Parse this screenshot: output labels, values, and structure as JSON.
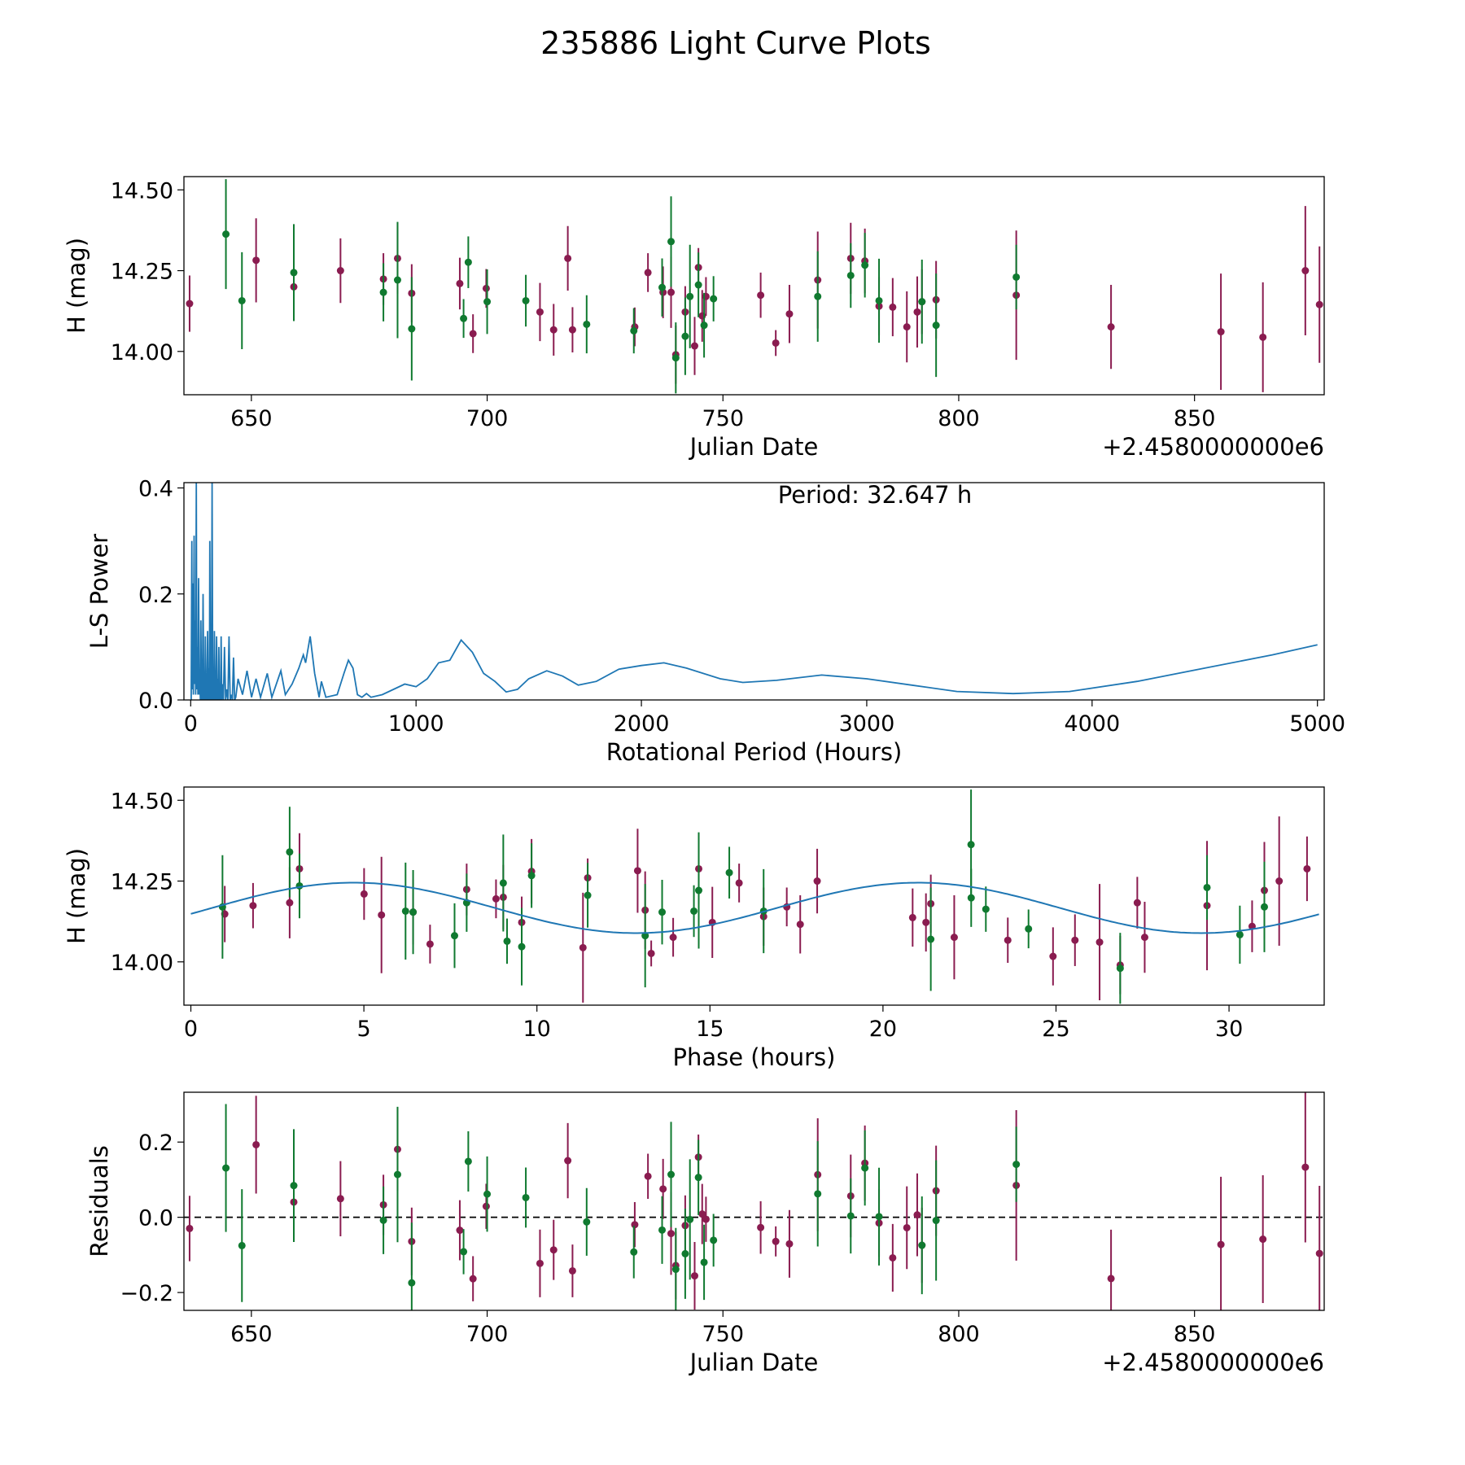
{
  "title": "235886 Light Curve Plots",
  "colors": {
    "band_a": "#8a1c50",
    "band_b": "#107a30",
    "periodogram": "#1f77b4",
    "model": "#1f77b4"
  },
  "offset_label": "+2.4580000000e6",
  "period_hours": 32.647,
  "model": {
    "mean": 14.167,
    "amplitude": 0.078,
    "peak_phase": 4.7,
    "epoch_jd": 636.88
  },
  "chart_data": [
    {
      "type": "scatter",
      "name": "light-curve",
      "xlabel": "Julian Date",
      "ylabel": "H (mag)",
      "xlim": [
        635.7,
        877.5
      ],
      "ylim": [
        13.866,
        14.541
      ],
      "xticks": [
        "650",
        "700",
        "750",
        "800",
        "850"
      ],
      "yticks": [
        "14.00",
        "14.25",
        "14.50"
      ],
      "series": [
        {
          "name": "band_a",
          "color": "#8a1c50",
          "points": [
            [
              636.9,
              14.148,
              0.087
            ],
            [
              651.0,
              14.282,
              0.13
            ],
            [
              659.0,
              14.2,
              0.1
            ],
            [
              668.9,
              14.25,
              0.1
            ],
            [
              678.0,
              14.224,
              0.08
            ],
            [
              681.0,
              14.288,
              0.11
            ],
            [
              684.0,
              14.18,
              0.09
            ],
            [
              694.2,
              14.21,
              0.08
            ],
            [
              697.0,
              14.055,
              0.06
            ],
            [
              699.8,
              14.195,
              0.06
            ],
            [
              711.2,
              14.122,
              0.09
            ],
            [
              714.1,
              14.067,
              0.08
            ],
            [
              717.1,
              14.288,
              0.1
            ],
            [
              718.1,
              14.067,
              0.07
            ],
            [
              731.3,
              14.076,
              0.06
            ],
            [
              734.1,
              14.244,
              0.06
            ],
            [
              737.3,
              14.183,
              0.08
            ],
            [
              739.0,
              14.183,
              0.11
            ],
            [
              740.0,
              13.99,
              0.09
            ],
            [
              742.0,
              14.122,
              0.08
            ],
            [
              744.0,
              14.017,
              0.09
            ],
            [
              744.8,
              14.26,
              0.06
            ],
            [
              745.6,
              14.11,
              0.08
            ],
            [
              746.4,
              14.17,
              0.06
            ],
            [
              758.0,
              14.174,
              0.07
            ],
            [
              761.2,
              14.026,
              0.04
            ],
            [
              764.1,
              14.116,
              0.09
            ],
            [
              770.1,
              14.221,
              0.15
            ],
            [
              777.1,
              14.288,
              0.11
            ],
            [
              780.1,
              14.28,
              0.1
            ],
            [
              783.1,
              14.14,
              0.09
            ],
            [
              786.0,
              14.137,
              0.09
            ],
            [
              789.0,
              14.076,
              0.11
            ],
            [
              791.2,
              14.122,
              0.11
            ],
            [
              792.2,
              14.154,
              0.1
            ],
            [
              795.2,
              14.16,
              0.12
            ],
            [
              812.2,
              14.174,
              0.2
            ],
            [
              832.3,
              14.076,
              0.13
            ],
            [
              855.6,
              14.061,
              0.18
            ],
            [
              864.5,
              14.044,
              0.17
            ],
            [
              873.5,
              14.25,
              0.2
            ],
            [
              876.5,
              14.145,
              0.18
            ]
          ]
        },
        {
          "name": "band_b",
          "color": "#107a30",
          "points": [
            [
              644.6,
              14.363,
              0.17
            ],
            [
              648.0,
              14.157,
              0.15
            ],
            [
              659.0,
              14.244,
              0.15
            ],
            [
              678.0,
              14.183,
              0.09
            ],
            [
              681.0,
              14.221,
              0.18
            ],
            [
              684.0,
              14.07,
              0.16
            ],
            [
              695.0,
              14.102,
              0.06
            ],
            [
              696.0,
              14.276,
              0.08
            ],
            [
              700.0,
              14.154,
              0.1
            ],
            [
              708.2,
              14.157,
              0.08
            ],
            [
              721.1,
              14.084,
              0.09
            ],
            [
              731.1,
              14.064,
              0.07
            ],
            [
              737.1,
              14.198,
              0.09
            ],
            [
              739.0,
              14.34,
              0.14
            ],
            [
              740.0,
              13.98,
              0.11
            ],
            [
              742.0,
              14.047,
              0.12
            ],
            [
              743.0,
              14.17,
              0.16
            ],
            [
              744.8,
              14.206,
              0.1
            ],
            [
              746.0,
              14.081,
              0.1
            ],
            [
              748.0,
              14.163,
              0.07
            ],
            [
              770.1,
              14.17,
              0.14
            ],
            [
              777.1,
              14.235,
              0.1
            ],
            [
              780.1,
              14.267,
              0.1
            ],
            [
              783.1,
              14.157,
              0.13
            ],
            [
              792.2,
              14.154,
              0.13
            ],
            [
              795.2,
              14.081,
              0.16
            ],
            [
              812.2,
              14.23,
              0.1
            ]
          ]
        }
      ]
    },
    {
      "type": "line",
      "name": "periodogram",
      "xlabel": "Rotational Period (Hours)",
      "ylabel": "L-S Power",
      "annotation": "Period: 32.647 h",
      "xlim": [
        -30,
        5030
      ],
      "ylim": [
        0,
        0.41
      ],
      "xticks": [
        "0",
        "1000",
        "2000",
        "3000",
        "4000",
        "5000"
      ],
      "yticks": [
        "0.0",
        "0.2",
        "0.4"
      ],
      "points": [
        [
          2,
          0
        ],
        [
          5,
          0.3
        ],
        [
          7,
          0.02
        ],
        [
          10,
          0.22
        ],
        [
          12,
          0.01
        ],
        [
          15,
          0.31
        ],
        [
          17,
          0.03
        ],
        [
          20,
          0.15
        ],
        [
          22,
          0.01
        ],
        [
          25,
          0.41
        ],
        [
          27,
          0.02
        ],
        [
          30,
          0.1
        ],
        [
          32,
          0.01
        ],
        [
          35,
          0.23
        ],
        [
          38,
          0.01
        ],
        [
          40,
          0.05
        ],
        [
          43,
          0.0
        ],
        [
          45,
          0.15
        ],
        [
          48,
          0.0
        ],
        [
          50,
          0.02
        ],
        [
          52,
          0.0
        ],
        [
          55,
          0.2
        ],
        [
          58,
          0.0
        ],
        [
          60,
          0.05
        ],
        [
          63,
          0.0
        ],
        [
          65,
          0.12
        ],
        [
          68,
          0.0
        ],
        [
          70,
          0.02
        ],
        [
          72,
          0.0
        ],
        [
          75,
          0.13
        ],
        [
          78,
          0.0
        ],
        [
          80,
          0.06
        ],
        [
          83,
          0.0
        ],
        [
          85,
          0.3
        ],
        [
          88,
          0.0
        ],
        [
          90,
          0.02
        ],
        [
          92,
          0.0
        ],
        [
          95,
          0.41
        ],
        [
          98,
          0.0
        ],
        [
          100,
          0.05
        ],
        [
          103,
          0.0
        ],
        [
          105,
          0.13
        ],
        [
          108,
          0.0
        ],
        [
          110,
          0.03
        ],
        [
          112,
          0.0
        ],
        [
          115,
          0.12
        ],
        [
          118,
          0.0
        ],
        [
          120,
          0.04
        ],
        [
          123,
          0.0
        ],
        [
          125,
          0.1
        ],
        [
          128,
          0.0
        ],
        [
          130,
          0.01
        ],
        [
          133,
          0.0
        ],
        [
          135,
          0.12
        ],
        [
          138,
          0.0
        ],
        [
          140,
          0.03
        ],
        [
          145,
          0.0
        ],
        [
          150,
          0.1
        ],
        [
          155,
          0.0
        ],
        [
          160,
          0.02
        ],
        [
          165,
          0.0
        ],
        [
          170,
          0.12
        ],
        [
          175,
          0.0
        ],
        [
          180,
          0.01
        ],
        [
          185,
          0.0
        ],
        [
          190,
          0.08
        ],
        [
          195,
          0.0
        ],
        [
          200,
          0.005
        ],
        [
          210,
          0.04
        ],
        [
          230,
          0.01
        ],
        [
          250,
          0.055
        ],
        [
          270,
          0.005
        ],
        [
          290,
          0.04
        ],
        [
          310,
          0.005
        ],
        [
          340,
          0.05
        ],
        [
          360,
          0.005
        ],
        [
          400,
          0.055
        ],
        [
          420,
          0.01
        ],
        [
          450,
          0.03
        ],
        [
          480,
          0.06
        ],
        [
          500,
          0.085
        ],
        [
          510,
          0.07
        ],
        [
          530,
          0.12
        ],
        [
          550,
          0.05
        ],
        [
          570,
          0.005
        ],
        [
          580,
          0.035
        ],
        [
          600,
          0.005
        ],
        [
          650,
          0.01
        ],
        [
          680,
          0.05
        ],
        [
          700,
          0.075
        ],
        [
          720,
          0.06
        ],
        [
          740,
          0.01
        ],
        [
          760,
          0.005
        ],
        [
          780,
          0.012
        ],
        [
          800,
          0.005
        ],
        [
          850,
          0.01
        ],
        [
          900,
          0.02
        ],
        [
          950,
          0.03
        ],
        [
          1000,
          0.025
        ],
        [
          1050,
          0.04
        ],
        [
          1100,
          0.07
        ],
        [
          1150,
          0.075
        ],
        [
          1200,
          0.113
        ],
        [
          1250,
          0.09
        ],
        [
          1300,
          0.05
        ],
        [
          1350,
          0.035
        ],
        [
          1400,
          0.015
        ],
        [
          1450,
          0.02
        ],
        [
          1500,
          0.04
        ],
        [
          1580,
          0.055
        ],
        [
          1650,
          0.045
        ],
        [
          1720,
          0.028
        ],
        [
          1800,
          0.035
        ],
        [
          1900,
          0.058
        ],
        [
          2000,
          0.065
        ],
        [
          2100,
          0.07
        ],
        [
          2200,
          0.06
        ],
        [
          2350,
          0.04
        ],
        [
          2450,
          0.033
        ],
        [
          2600,
          0.037
        ],
        [
          2800,
          0.047
        ],
        [
          3000,
          0.04
        ],
        [
          3200,
          0.028
        ],
        [
          3400,
          0.016
        ],
        [
          3650,
          0.012
        ],
        [
          3900,
          0.016
        ],
        [
          4200,
          0.035
        ],
        [
          4500,
          0.06
        ],
        [
          4800,
          0.085
        ],
        [
          5000,
          0.104
        ]
      ]
    },
    {
      "type": "scatter",
      "name": "phase-folded",
      "xlabel": "Phase (hours)",
      "ylabel": "H (mag)",
      "xlim": [
        -0.2,
        32.75
      ],
      "ylim": [
        13.866,
        14.541
      ],
      "xticks": [
        "0",
        "5",
        "10",
        "15",
        "20",
        "25",
        "30"
      ],
      "yticks": [
        "14.00",
        "14.25",
        "14.50"
      ]
    },
    {
      "type": "scatter",
      "name": "residuals",
      "xlabel": "Julian Date",
      "ylabel": "Residuals",
      "xlim": [
        635.7,
        877.5
      ],
      "ylim": [
        -0.2475,
        0.3325
      ],
      "xticks": [
        "650",
        "700",
        "750",
        "800",
        "850"
      ],
      "yticks": [
        "−0.2",
        "0.0",
        "0.2"
      ]
    }
  ]
}
